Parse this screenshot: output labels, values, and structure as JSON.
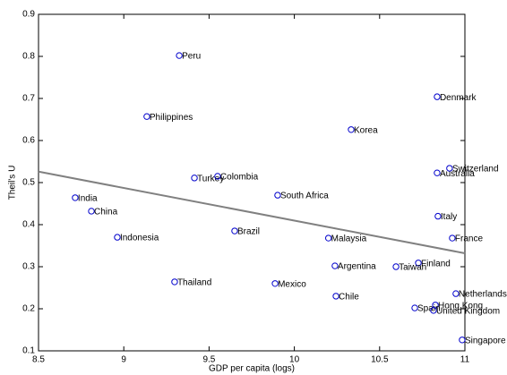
{
  "chart_data": {
    "type": "scatter",
    "x_label": "GDP per capita (logs)",
    "y_label": "Theil's U",
    "labels": [
      "Peru",
      "Philippines",
      "Denmark",
      "Korea",
      "Switzerland",
      "Australia",
      "Turkey",
      "Colombia",
      "South Africa",
      "India",
      "China",
      "Italy",
      "Brazil",
      "Indonesia",
      "Malaysia",
      "France",
      "Finland",
      "Argentina",
      "Taiwan",
      "Thailand",
      "Mexico",
      "Netherlands",
      "Chile",
      "Hong Kong",
      "Spain",
      "United Kingdom",
      "Singapore"
    ],
    "x": [
      9.325,
      9.135,
      10.837,
      10.333,
      10.91,
      10.837,
      9.414,
      9.55,
      9.902,
      8.715,
      8.81,
      10.842,
      9.65,
      8.962,
      10.2,
      10.926,
      10.727,
      10.238,
      10.596,
      9.298,
      9.887,
      10.947,
      10.244,
      10.827,
      10.706,
      10.816,
      10.984
    ],
    "y": [
      0.802,
      0.657,
      0.704,
      0.626,
      0.534,
      0.523,
      0.511,
      0.515,
      0.47,
      0.464,
      0.432,
      0.42,
      0.385,
      0.37,
      0.368,
      0.368,
      0.309,
      0.302,
      0.3,
      0.264,
      0.26,
      0.236,
      0.23,
      0.209,
      0.202,
      0.196,
      0.126
    ],
    "color": "#0000cc",
    "fit_line": {
      "color": "#808080",
      "x": [
        8.5,
        11
      ],
      "y": [
        0.526,
        0.332
      ]
    },
    "xlim": [
      8.5,
      11
    ],
    "xticks": [
      8.5,
      9,
      9.5,
      10,
      10.5,
      11
    ],
    "ylim": [
      0.1,
      0.9
    ],
    "yticks": [
      0.1,
      0.2,
      0.3,
      0.4,
      0.5,
      0.6,
      0.7,
      0.8,
      0.9
    ]
  }
}
